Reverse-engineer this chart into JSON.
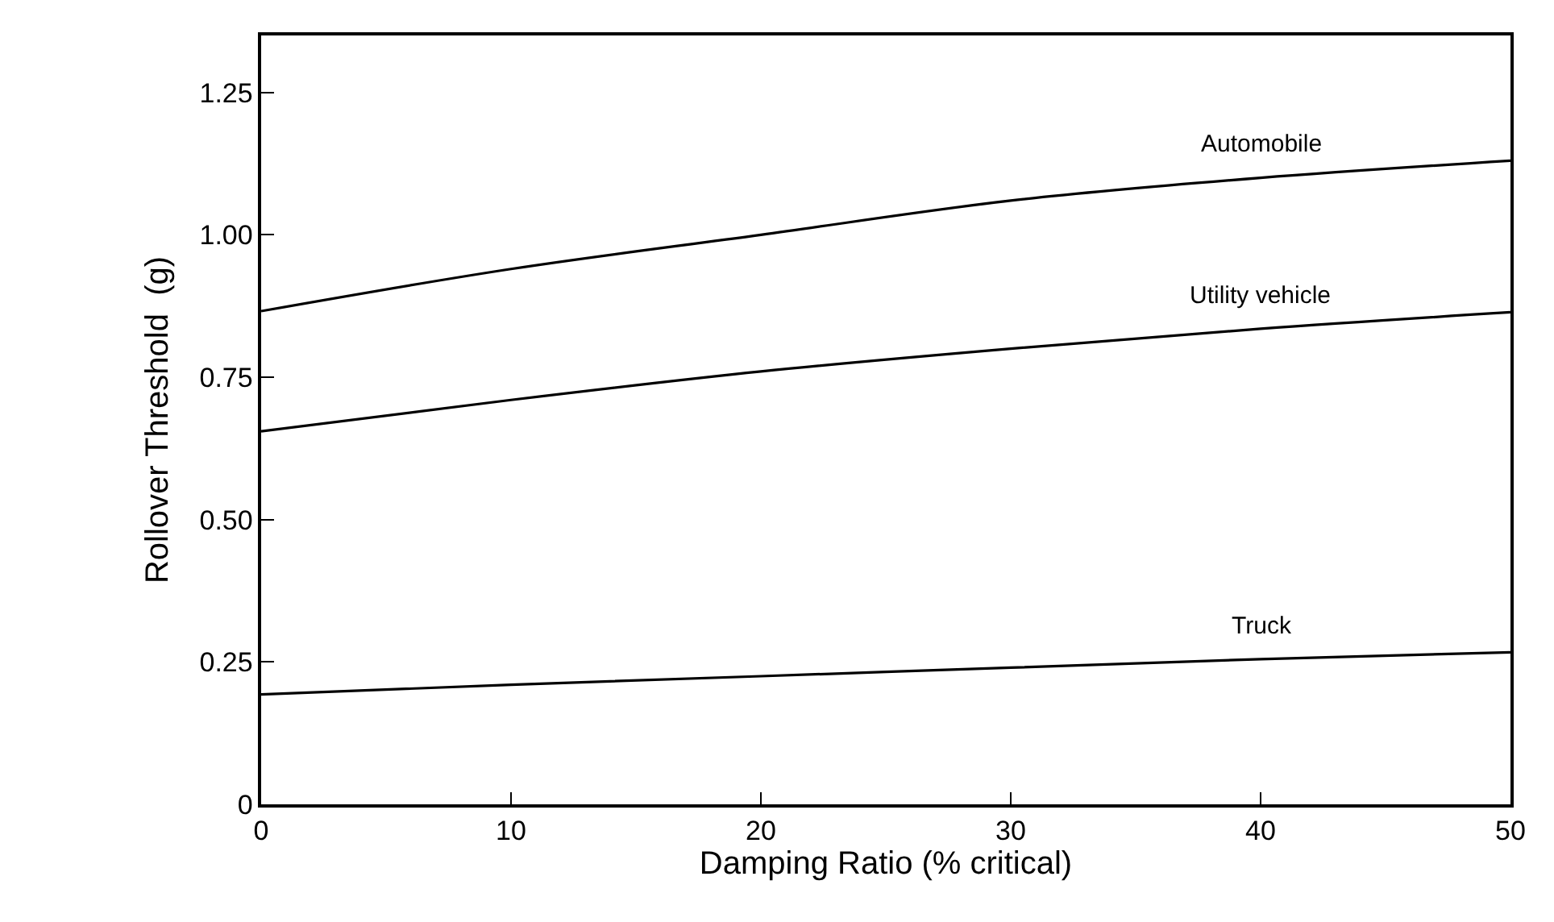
{
  "chart_data": {
    "type": "line",
    "xlabel": "Damping Ratio (% critical)",
    "ylabel": "Rollover Threshold  (g)",
    "x": [
      0,
      10,
      20,
      30,
      40,
      50
    ],
    "series": [
      {
        "name": "Automobile",
        "color": "#000000",
        "values": [
          0.866,
          0.94,
          1.0,
          1.06,
          1.1,
          1.13
        ]
      },
      {
        "name": "Utility vehicle",
        "color": "#000000",
        "values": [
          0.655,
          0.71,
          0.76,
          0.8,
          0.835,
          0.864
        ]
      },
      {
        "name": "Truck",
        "color": "#000000",
        "values": [
          0.193,
          0.21,
          0.225,
          0.24,
          0.255,
          0.267
        ]
      }
    ],
    "xlim": [
      0,
      50
    ],
    "xticks": [
      0,
      10,
      20,
      30,
      40,
      50
    ],
    "ylim": [
      0,
      1.35
    ],
    "yticks": [
      {
        "value": 0,
        "label": "0"
      },
      {
        "value": 0.25,
        "label": "0.25"
      },
      {
        "value": 0.5,
        "label": "0.50"
      },
      {
        "value": 0.75,
        "label": "0.75"
      },
      {
        "value": 1,
        "label": "1.00"
      },
      {
        "value": 1.25,
        "label": "1.25"
      }
    ],
    "grid": false,
    "legend": false,
    "marker": "none",
    "line_style": "solid"
  }
}
